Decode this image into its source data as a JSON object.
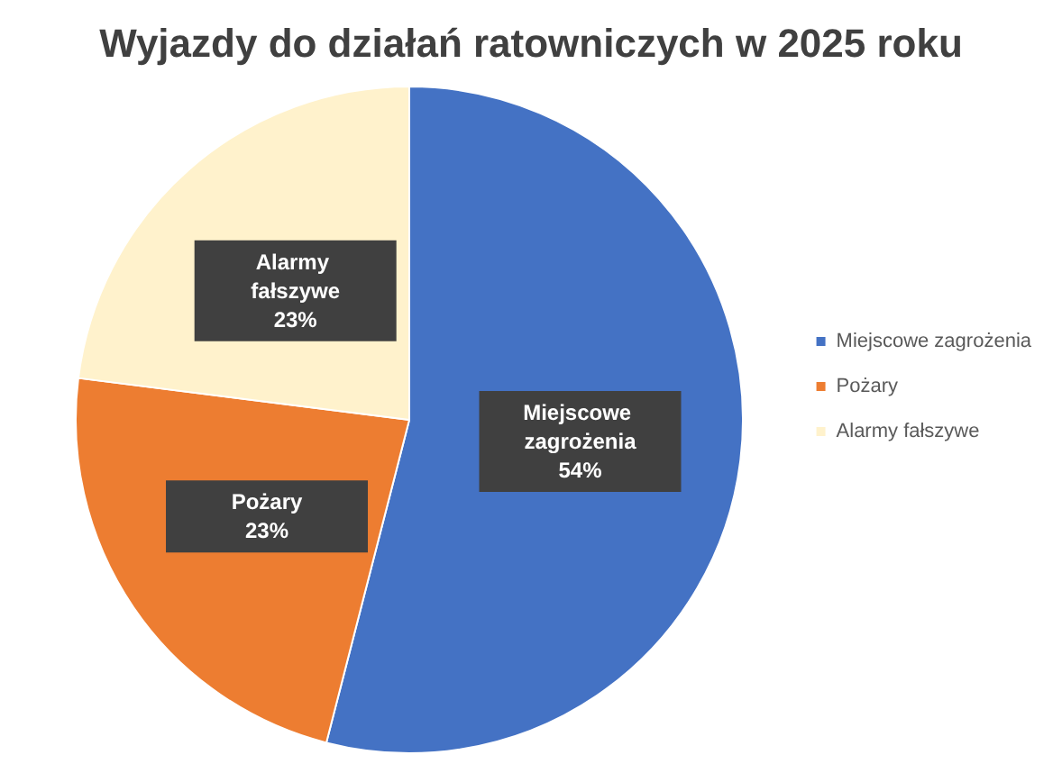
{
  "chart_data": {
    "type": "pie",
    "title": "Wyjazdy do działań ratowniczych w 2025 roku",
    "categories": [
      "Miejscowe zagrożenia",
      "Pożary",
      "Alarmy fałszywe"
    ],
    "values": [
      54,
      23,
      23
    ],
    "colors": [
      "#4472c4",
      "#ed7d31",
      "#fff2cc"
    ],
    "value_labels": [
      "54%",
      "23%",
      "23%"
    ],
    "legend": "right"
  }
}
